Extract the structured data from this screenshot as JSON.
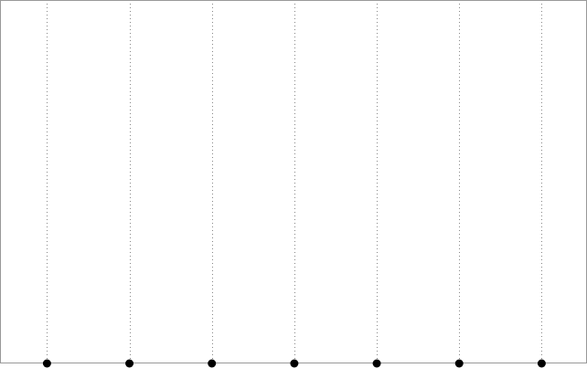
{
  "chart_data": {
    "type": "scatter",
    "x": [
      1,
      2,
      3,
      4,
      5,
      6,
      7
    ],
    "y": [
      0,
      0,
      0,
      0,
      0,
      0,
      0
    ],
    "xlim": [
      0.43,
      7.55
    ],
    "ylim": [
      0,
      1
    ],
    "grid": "vertical-dotted",
    "title": "",
    "xlabel": "",
    "ylabel": "",
    "colors": {
      "frame": "#999999",
      "grid": "#888888",
      "point": "#000000"
    }
  }
}
